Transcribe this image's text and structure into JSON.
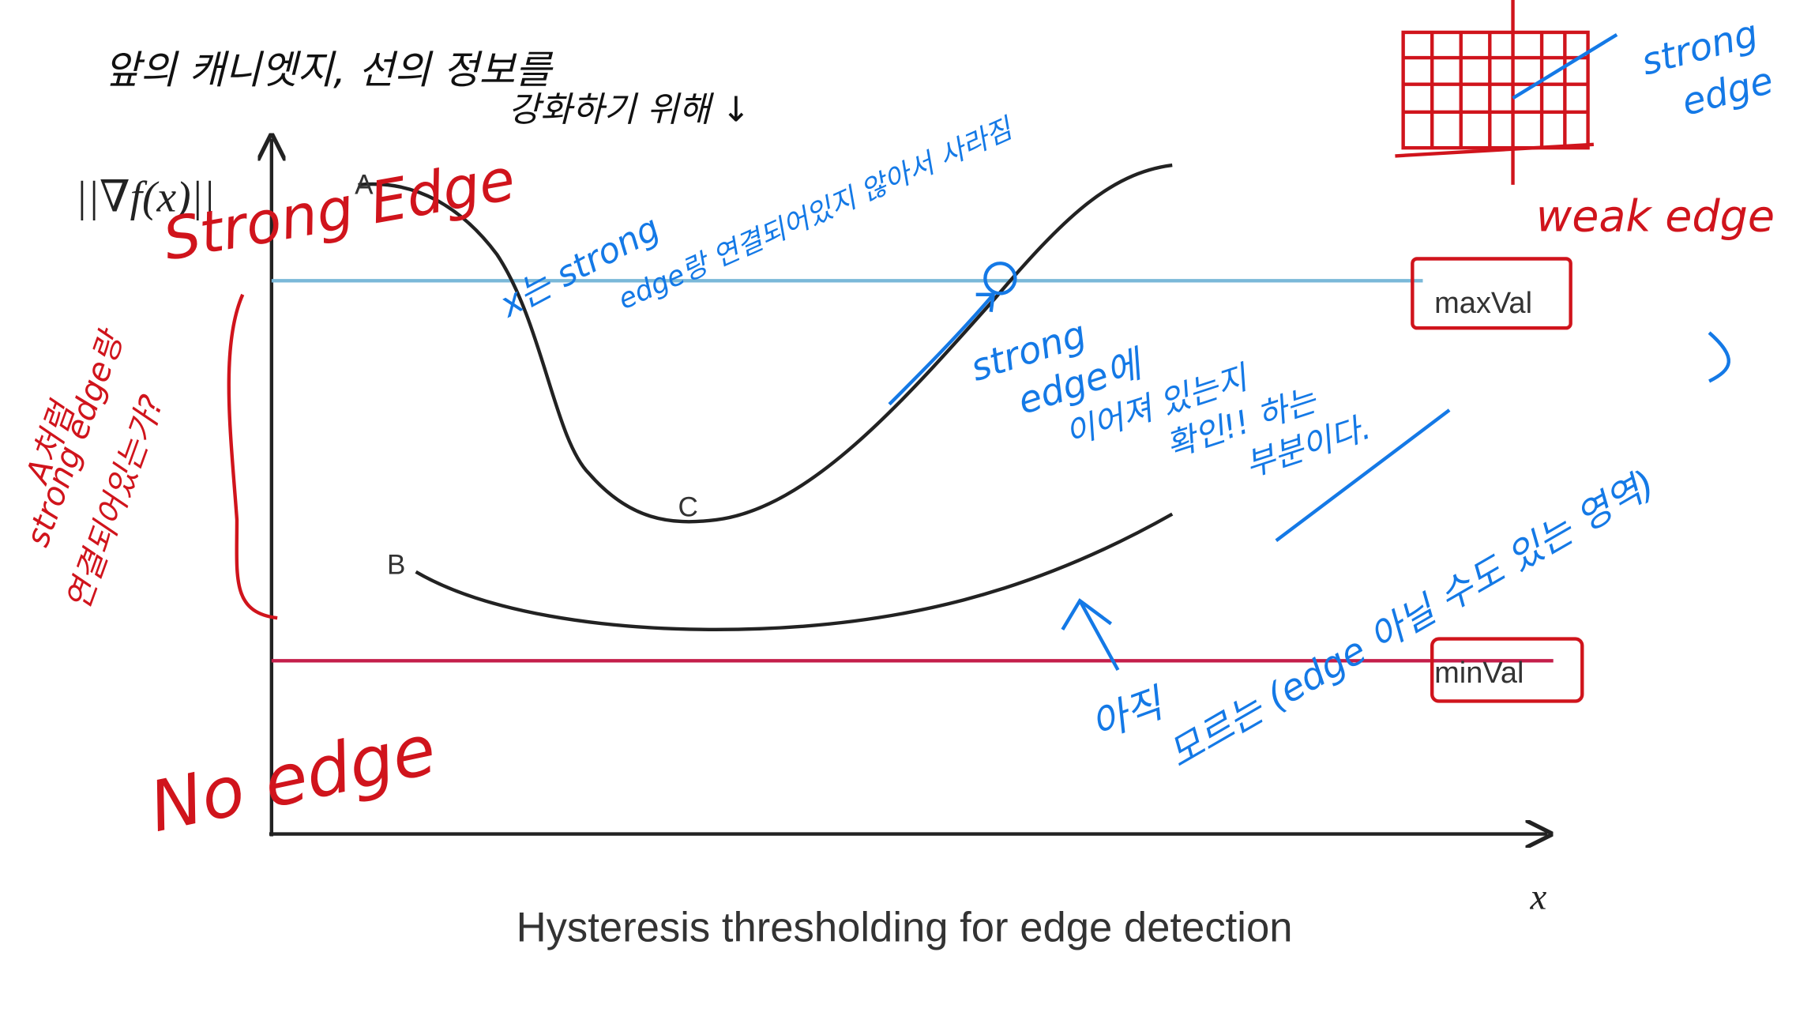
{
  "diagram": {
    "y_axis_label": "||∇f(x)||",
    "x_axis_label": "x",
    "caption": "Hysteresis thresholding for edge detection",
    "curve_labels": [
      "A",
      "B",
      "C"
    ],
    "thresholds": [
      "maxVal",
      "minVal"
    ]
  },
  "annotations": {
    "top_note": [
      "앞의 캐니엣지, 선의 정보를",
      "강화하기 위해 ↓"
    ],
    "strong_edge": "Strong Edge",
    "no_edge": "No edge",
    "weak_edge": "weak edge",
    "corner_strong_edge": [
      "strong",
      "edge"
    ],
    "x_note": [
      "x는 strong",
      "edge랑 연결되어있지 않아서 사라짐"
    ],
    "c_note": [
      "strong",
      "edge에",
      "이어져 있는지",
      "확인!! 하는",
      "부분이다."
    ],
    "between_note": [
      "아직",
      "모르는 (edge 아닐 수도 있는 영역)"
    ],
    "left_note": [
      "A처럼",
      "strong edge랑",
      "연결되어있는가?"
    ]
  }
}
